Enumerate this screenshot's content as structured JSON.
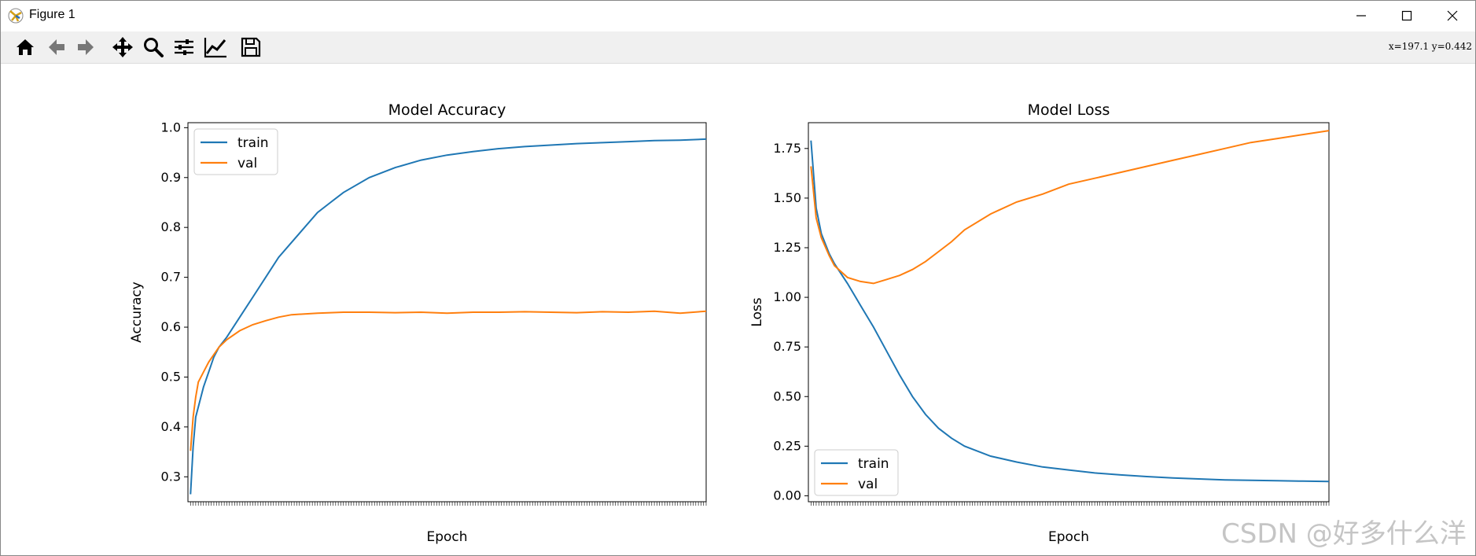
{
  "window": {
    "title": "Figure 1"
  },
  "toolbar": {
    "buttons": [
      "home-icon",
      "back-icon",
      "forward-icon",
      "pan-icon",
      "zoom-icon",
      "configure-subplots-icon",
      "edit-axis-icon",
      "save-icon"
    ],
    "coords": "x=197.1 y=0.442"
  },
  "watermark": "CSDN @好多什么洋",
  "colors": {
    "train": "#1f77b4",
    "val": "#ff7f0e"
  },
  "chart_data": [
    {
      "type": "line",
      "title": "Model Accuracy",
      "xlabel": "Epoch",
      "ylabel": "Accuracy",
      "xlim": [
        0,
        200
      ],
      "ylim": [
        0.25,
        1.01
      ],
      "yticks": [
        0.3,
        0.4,
        0.5,
        0.6,
        0.7,
        0.8,
        0.9,
        1.0
      ],
      "ytick_labels": [
        "0.3",
        "0.4",
        "0.5",
        "0.6",
        "0.7",
        "0.8",
        "0.9",
        "1.0"
      ],
      "legend": [
        "train",
        "val"
      ],
      "legend_loc": "upper-left",
      "series": [
        {
          "name": "train",
          "x": [
            1,
            2,
            3,
            4,
            6,
            8,
            10,
            12,
            15,
            20,
            25,
            30,
            35,
            40,
            45,
            50,
            55,
            60,
            70,
            80,
            90,
            100,
            110,
            120,
            130,
            140,
            150,
            160,
            170,
            180,
            190,
            200
          ],
          "values": [
            0.265,
            0.36,
            0.42,
            0.44,
            0.48,
            0.51,
            0.54,
            0.56,
            0.58,
            0.62,
            0.66,
            0.7,
            0.74,
            0.77,
            0.8,
            0.83,
            0.85,
            0.87,
            0.9,
            0.92,
            0.935,
            0.945,
            0.952,
            0.958,
            0.962,
            0.965,
            0.968,
            0.97,
            0.972,
            0.974,
            0.975,
            0.977
          ]
        },
        {
          "name": "val",
          "x": [
            1,
            2,
            3,
            4,
            6,
            8,
            10,
            12,
            15,
            20,
            25,
            30,
            35,
            40,
            50,
            60,
            70,
            80,
            90,
            100,
            110,
            120,
            130,
            140,
            150,
            160,
            170,
            180,
            190,
            200
          ],
          "values": [
            0.352,
            0.42,
            0.46,
            0.49,
            0.51,
            0.53,
            0.545,
            0.56,
            0.575,
            0.593,
            0.605,
            0.613,
            0.62,
            0.625,
            0.628,
            0.63,
            0.63,
            0.629,
            0.63,
            0.628,
            0.63,
            0.63,
            0.631,
            0.63,
            0.629,
            0.631,
            0.63,
            0.632,
            0.628,
            0.632
          ]
        }
      ]
    },
    {
      "type": "line",
      "title": "Model Loss",
      "xlabel": "Epoch",
      "ylabel": "Loss",
      "xlim": [
        0,
        200
      ],
      "ylim": [
        -0.03,
        1.88
      ],
      "yticks": [
        0,
        0.25,
        0.5,
        0.75,
        1.0,
        1.25,
        1.5,
        1.75
      ],
      "ytick_labels": [
        "0.00",
        "0.25",
        "0.50",
        "0.75",
        "1.00",
        "1.25",
        "1.50",
        "1.75"
      ],
      "legend": [
        "train",
        "val"
      ],
      "legend_loc": "lower-left",
      "series": [
        {
          "name": "train",
          "x": [
            1,
            3,
            5,
            8,
            10,
            15,
            20,
            25,
            30,
            35,
            40,
            45,
            50,
            55,
            60,
            70,
            80,
            90,
            100,
            110,
            120,
            130,
            140,
            150,
            160,
            170,
            180,
            190,
            200
          ],
          "values": [
            1.79,
            1.45,
            1.32,
            1.22,
            1.17,
            1.07,
            0.96,
            0.85,
            0.73,
            0.61,
            0.5,
            0.41,
            0.34,
            0.29,
            0.25,
            0.2,
            0.17,
            0.145,
            0.13,
            0.115,
            0.105,
            0.097,
            0.09,
            0.085,
            0.08,
            0.078,
            0.076,
            0.074,
            0.072
          ]
        },
        {
          "name": "val",
          "x": [
            1,
            3,
            5,
            8,
            10,
            15,
            20,
            25,
            30,
            35,
            40,
            45,
            50,
            55,
            60,
            70,
            80,
            90,
            100,
            110,
            120,
            130,
            140,
            150,
            160,
            170,
            180,
            190,
            200
          ],
          "values": [
            1.66,
            1.4,
            1.3,
            1.21,
            1.16,
            1.1,
            1.08,
            1.07,
            1.09,
            1.11,
            1.14,
            1.18,
            1.23,
            1.28,
            1.34,
            1.42,
            1.48,
            1.52,
            1.57,
            1.6,
            1.63,
            1.66,
            1.69,
            1.72,
            1.75,
            1.78,
            1.8,
            1.82,
            1.84
          ]
        }
      ]
    }
  ]
}
